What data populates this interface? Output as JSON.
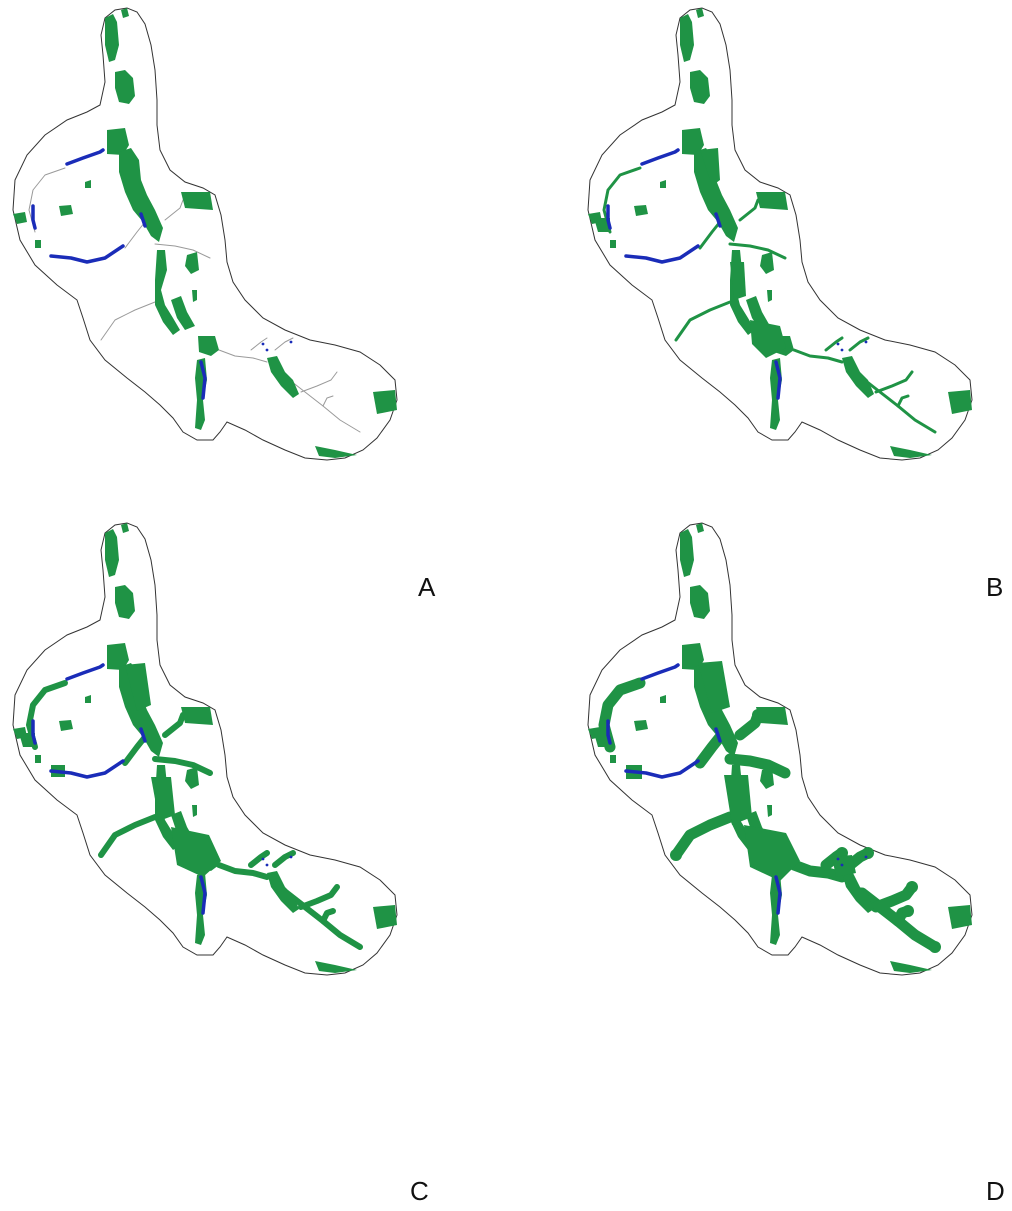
{
  "top_caption": "",
  "panel_letters": [
    "A",
    "B",
    "C",
    "D"
  ],
  "colors": {
    "boundary": "#333333",
    "habitat_patch": "#1f9345",
    "habitat_water": "#1a2cb8",
    "corridor_thin": "#9a9a9a"
  },
  "panels": [
    {
      "id": "A",
      "corridor_level": "thin"
    },
    {
      "id": "B",
      "corridor_level": "low"
    },
    {
      "id": "C",
      "corridor_level": "medium"
    },
    {
      "id": "D",
      "corridor_level": "wide"
    }
  ]
}
